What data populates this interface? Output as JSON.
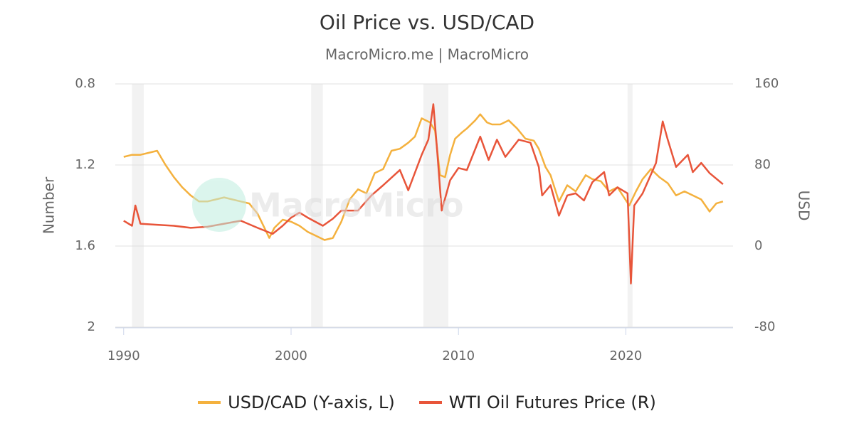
{
  "chart_data": {
    "type": "line",
    "title": "Oil Price vs. USD/CAD",
    "subtitle": "MacroMicro.me | MacroMicro",
    "watermark": "MacroMicro",
    "y_label": "Number",
    "y2_label": "USD",
    "xlim": [
      1989.5,
      2026.4
    ],
    "xticks": [
      1990,
      2000,
      2010,
      2020
    ],
    "ylim": [
      0.8,
      2
    ],
    "y_inverted": true,
    "yticks": [
      0.8,
      1.2,
      1.6,
      2
    ],
    "y2lim": [
      -80,
      160
    ],
    "y2ticks": [
      -80,
      0,
      80,
      160
    ],
    "grid": true,
    "legend": "bottom",
    "recessions": [
      [
        1990.5,
        1991.2
      ],
      [
        2001.2,
        2001.9
      ],
      [
        2007.9,
        2009.4
      ],
      [
        2020.1,
        2020.4
      ]
    ],
    "series": [
      {
        "name": "USD/CAD (Y-axis, L)",
        "color": "#f4b13e",
        "axis": "y",
        "x": [
          1990,
          1990.5,
          1991,
          1991.5,
          1992,
          1992.5,
          1993,
          1993.5,
          1994,
          1994.5,
          1995,
          1995.5,
          1996,
          1996.5,
          1997,
          1997.5,
          1998,
          1998.7,
          1999,
          1999.5,
          2000,
          2000.5,
          2001,
          2001.5,
          2002,
          2002.5,
          2003,
          2003.5,
          2004,
          2004.5,
          2005,
          2005.5,
          2006,
          2006.5,
          2007,
          2007.4,
          2007.8,
          2008.3,
          2008.6,
          2008.9,
          2009.2,
          2009.5,
          2009.8,
          2010.2,
          2010.5,
          2011,
          2011.3,
          2011.7,
          2012,
          2012.5,
          2013,
          2013.5,
          2014,
          2014.5,
          2014.8,
          2015.2,
          2015.5,
          2016,
          2016.5,
          2017,
          2017.6,
          2018,
          2018.5,
          2019,
          2019.5,
          2020.2,
          2020.6,
          2021,
          2021.5,
          2022,
          2022.5,
          2023,
          2023.5,
          2024,
          2024.5,
          2025,
          2025.4,
          2025.8
        ],
        "values": [
          1.16,
          1.15,
          1.15,
          1.14,
          1.13,
          1.2,
          1.26,
          1.31,
          1.35,
          1.38,
          1.38,
          1.37,
          1.36,
          1.37,
          1.38,
          1.39,
          1.44,
          1.56,
          1.51,
          1.47,
          1.48,
          1.5,
          1.53,
          1.55,
          1.57,
          1.56,
          1.48,
          1.37,
          1.32,
          1.34,
          1.24,
          1.22,
          1.13,
          1.12,
          1.09,
          1.06,
          0.97,
          0.99,
          1.03,
          1.25,
          1.26,
          1.15,
          1.07,
          1.04,
          1.02,
          0.98,
          0.95,
          0.99,
          1.0,
          1.0,
          0.98,
          1.02,
          1.07,
          1.08,
          1.12,
          1.21,
          1.25,
          1.38,
          1.3,
          1.33,
          1.25,
          1.27,
          1.28,
          1.33,
          1.31,
          1.4,
          1.33,
          1.27,
          1.22,
          1.26,
          1.29,
          1.35,
          1.33,
          1.35,
          1.37,
          1.43,
          1.39,
          1.38
        ]
      },
      {
        "name": "WTI Oil Futures Price (R)",
        "color": "#e8553a",
        "axis": "y2",
        "x": [
          1990,
          1990.5,
          1990.7,
          1991,
          1992,
          1993,
          1994,
          1995,
          1996,
          1997,
          1998,
          1998.9,
          1999.5,
          2000,
          2000.5,
          2001,
          2001.9,
          2002.5,
          2003,
          2004,
          2004.8,
          2005.5,
          2006.5,
          2007,
          2007.8,
          2008.2,
          2008.5,
          2008.7,
          2009,
          2009.5,
          2010,
          2010.5,
          2011.3,
          2011.8,
          2012.3,
          2012.8,
          2013.6,
          2014.3,
          2014.8,
          2015,
          2015.5,
          2016,
          2016.5,
          2017,
          2017.5,
          2018,
          2018.7,
          2019,
          2019.5,
          2020.1,
          2020.3,
          2020.5,
          2021,
          2021.8,
          2022.2,
          2022.5,
          2023,
          2023.7,
          2024,
          2024.5,
          2025,
          2025.8
        ],
        "values": [
          25,
          20,
          40,
          22,
          21,
          20,
          18,
          19,
          22,
          25,
          18,
          12,
          20,
          28,
          33,
          28,
          20,
          27,
          35,
          35,
          50,
          60,
          75,
          55,
          90,
          105,
          140,
          100,
          35,
          65,
          77,
          75,
          108,
          85,
          105,
          88,
          105,
          102,
          78,
          50,
          60,
          30,
          50,
          52,
          45,
          63,
          73,
          50,
          58,
          52,
          -37,
          40,
          52,
          82,
          123,
          105,
          78,
          90,
          73,
          82,
          72,
          61
        ]
      }
    ]
  }
}
